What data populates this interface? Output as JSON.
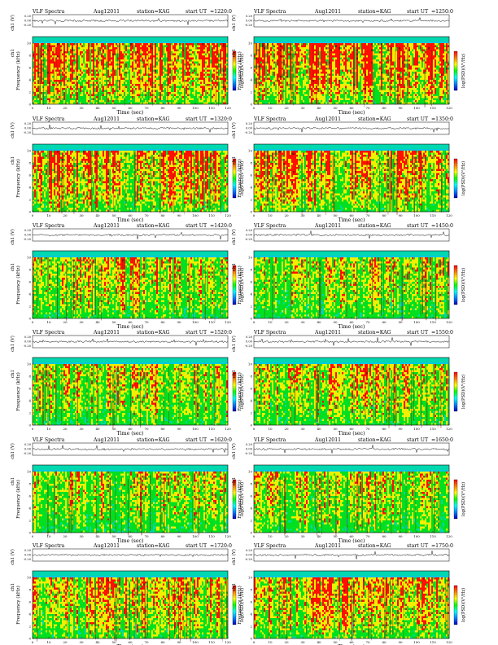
{
  "figure": {
    "header_title": "VLF Spectra",
    "date": "Aug12011",
    "station": "station=KAG",
    "start_label": "start UT",
    "xlabel": "Time (sec)",
    "wave_label": "ch1 (V)",
    "ylabel_top": "ch1",
    "ylabel": "Frequency (kHz)",
    "cbar_label": "log(PSD)(V²/Hz)",
    "xticks": [
      "0",
      "10",
      "20",
      "30",
      "40",
      "50",
      "60",
      "70",
      "80",
      "90",
      "100",
      "110",
      "120"
    ],
    "yticks": [
      "0",
      "2",
      "4",
      "6",
      "8",
      "10"
    ],
    "wave_ticks": [
      "0.20",
      "0.00",
      "-0.20"
    ]
  },
  "colors": {
    "background": "#00d8b0",
    "low": "#00e020",
    "mid": "#f0f000",
    "high": "#ff1000",
    "dark": "#8b1000",
    "colorbar": [
      "#ff0000",
      "#ff8000",
      "#ffff00",
      "#00ff00",
      "#00ffff",
      "#0080ff",
      "#0000c0"
    ]
  },
  "chart_data": [
    {
      "type": "heatmap",
      "start_ut": "=1220:0",
      "x_range": [
        0,
        120
      ],
      "y_range": [
        0,
        10
      ],
      "intensity": 0.82
    },
    {
      "type": "heatmap",
      "start_ut": "=1250:0",
      "x_range": [
        0,
        120
      ],
      "y_range": [
        0,
        10
      ],
      "intensity": 0.84
    },
    {
      "type": "heatmap",
      "start_ut": "=1320:0",
      "x_range": [
        0,
        120
      ],
      "y_range": [
        0,
        10
      ],
      "intensity": 0.8
    },
    {
      "type": "heatmap",
      "start_ut": "=1350:0",
      "x_range": [
        0,
        120
      ],
      "y_range": [
        0,
        10
      ],
      "intensity": 0.78
    },
    {
      "type": "heatmap",
      "start_ut": "=1420:0",
      "x_range": [
        0,
        120
      ],
      "y_range": [
        0,
        10
      ],
      "intensity": 0.7
    },
    {
      "type": "heatmap",
      "start_ut": "=1450:0",
      "x_range": [
        0,
        120
      ],
      "y_range": [
        0,
        10
      ],
      "intensity": 0.66
    },
    {
      "type": "heatmap",
      "start_ut": "=1520:0",
      "x_range": [
        0,
        120
      ],
      "y_range": [
        0,
        10
      ],
      "intensity": 0.68
    },
    {
      "type": "heatmap",
      "start_ut": "=1550:0",
      "x_range": [
        0,
        120
      ],
      "y_range": [
        0,
        10
      ],
      "intensity": 0.7
    },
    {
      "type": "heatmap",
      "start_ut": "=1620:0",
      "x_range": [
        0,
        120
      ],
      "y_range": [
        0,
        10
      ],
      "intensity": 0.64
    },
    {
      "type": "heatmap",
      "start_ut": "=1650:0",
      "x_range": [
        0,
        120
      ],
      "y_range": [
        0,
        10
      ],
      "intensity": 0.66
    },
    {
      "type": "heatmap",
      "start_ut": "=1720:0",
      "x_range": [
        0,
        120
      ],
      "y_range": [
        0,
        10
      ],
      "intensity": 0.74
    },
    {
      "type": "heatmap",
      "start_ut": "=1750:0",
      "x_range": [
        0,
        120
      ],
      "y_range": [
        0,
        10
      ],
      "intensity": 0.76
    }
  ]
}
